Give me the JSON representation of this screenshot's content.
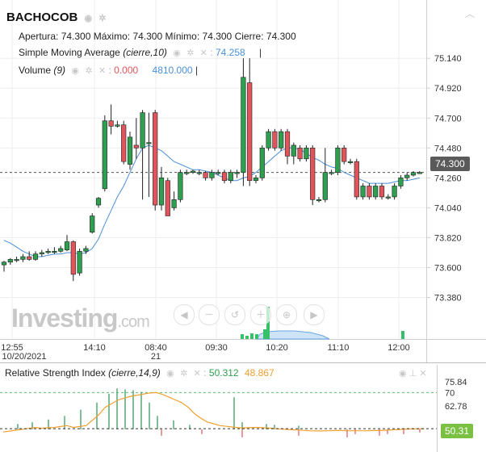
{
  "symbol": "BACHOCOB",
  "header": {
    "open_label": "Apertura:",
    "open_value": "74.300",
    "high_label": "Máximo:",
    "high_value": "74.300",
    "low_label": "Mínimo:",
    "low_value": "74.300",
    "close_label": "Cierre:",
    "close_value": "74.300"
  },
  "indicators": {
    "sma_label": "Simple Moving Average",
    "sma_params": "(cierre,10)",
    "sma_value": "74.258",
    "volume_label": "Volume",
    "volume_params": "(9)",
    "volume_value1": "0.000",
    "volume_value2": "4810.000",
    "rsi_label": "Relative Strength Index",
    "rsi_params": "(cierre,14,9)",
    "rsi_value1": "50.312",
    "rsi_value2": "48.867"
  },
  "watermark": {
    "brand": "Investing",
    "suffix": ".com"
  },
  "current_price_tag": "74.300",
  "rsi_tag": "50.31",
  "colors": {
    "up": "#2e9e4f",
    "down": "#e0555b",
    "sma": "#4a90d9",
    "rsi": "#f0a030",
    "rsi_volume": "#4aa36a",
    "grid": "#eeeeee",
    "price_tag": "#5a5a5a",
    "rsi_tag": "#7ac143"
  },
  "icons": [
    "eye-icon",
    "gear-icon",
    "close-icon",
    "collapse-icon",
    "chevron-up-icon",
    "chevron-left-icon",
    "zoom-out-icon",
    "zoom-reset-icon",
    "zoom-in-icon",
    "chevron-right-icon"
  ],
  "chart_data": [
    {
      "type": "candlestick",
      "title": "BACHOCOB",
      "x_ticks": [
        "12:55",
        "14:10",
        "08:40",
        "09:30",
        "10:20",
        "11:10",
        "12:00"
      ],
      "x_subticks": [
        "10/20/2021",
        "",
        "21",
        "",
        "",
        "",
        ""
      ],
      "y_ticks": [
        75.14,
        74.92,
        74.7,
        74.48,
        74.26,
        74.04,
        73.82,
        73.6,
        73.38
      ],
      "ylim": [
        73.3,
        75.26
      ],
      "grid": true,
      "candles": [
        {
          "o": 73.62,
          "h": 73.65,
          "l": 73.57,
          "c": 73.64
        },
        {
          "o": 73.64,
          "h": 73.67,
          "l": 73.62,
          "c": 73.66
        },
        {
          "o": 73.66,
          "h": 73.68,
          "l": 73.64,
          "c": 73.66
        },
        {
          "o": 73.66,
          "h": 73.7,
          "l": 73.64,
          "c": 73.68
        },
        {
          "o": 73.68,
          "h": 73.72,
          "l": 73.65,
          "c": 73.66
        },
        {
          "o": 73.66,
          "h": 73.72,
          "l": 73.65,
          "c": 73.7
        },
        {
          "o": 73.7,
          "h": 73.73,
          "l": 73.68,
          "c": 73.71
        },
        {
          "o": 73.71,
          "h": 73.74,
          "l": 73.7,
          "c": 73.72
        },
        {
          "o": 73.72,
          "h": 73.75,
          "l": 73.7,
          "c": 73.72
        },
        {
          "o": 73.72,
          "h": 73.76,
          "l": 73.71,
          "c": 73.74
        },
        {
          "o": 73.73,
          "h": 73.84,
          "l": 73.72,
          "c": 73.79
        },
        {
          "o": 73.79,
          "h": 73.8,
          "l": 73.5,
          "c": 73.55
        },
        {
          "o": 73.56,
          "h": 73.74,
          "l": 73.54,
          "c": 73.72
        },
        {
          "o": 73.72,
          "h": 73.76,
          "l": 73.7,
          "c": 73.74
        },
        {
          "o": 73.86,
          "h": 74.0,
          "l": 73.85,
          "c": 73.98
        },
        {
          "o": 74.06,
          "h": 74.12,
          "l": 74.04,
          "c": 74.11
        },
        {
          "o": 74.18,
          "h": 74.72,
          "l": 74.16,
          "c": 74.68
        },
        {
          "o": 74.68,
          "h": 74.8,
          "l": 74.58,
          "c": 74.64
        },
        {
          "o": 74.64,
          "h": 74.68,
          "l": 74.63,
          "c": 74.65
        },
        {
          "o": 74.65,
          "h": 74.68,
          "l": 74.36,
          "c": 74.38
        },
        {
          "o": 74.36,
          "h": 74.6,
          "l": 74.32,
          "c": 74.56
        },
        {
          "o": 74.5,
          "h": 74.7,
          "l": 74.4,
          "c": 74.48
        },
        {
          "o": 74.48,
          "h": 74.76,
          "l": 74.1,
          "c": 74.74
        },
        {
          "o": 74.52,
          "h": 74.74,
          "l": 74.12,
          "c": 74.52
        },
        {
          "o": 74.74,
          "h": 74.76,
          "l": 74.02,
          "c": 74.06
        },
        {
          "o": 74.06,
          "h": 74.34,
          "l": 74.02,
          "c": 74.26
        },
        {
          "o": 74.24,
          "h": 74.26,
          "l": 73.98,
          "c": 73.98
        },
        {
          "o": 74.04,
          "h": 74.16,
          "l": 74.02,
          "c": 74.1
        },
        {
          "o": 74.1,
          "h": 74.32,
          "l": 74.08,
          "c": 74.3
        },
        {
          "o": 74.3,
          "h": 74.32,
          "l": 74.28,
          "c": 74.3
        },
        {
          "o": 74.3,
          "h": 74.32,
          "l": 74.29,
          "c": 74.31
        },
        {
          "o": 74.3,
          "h": 74.32,
          "l": 74.28,
          "c": 74.3
        },
        {
          "o": 74.3,
          "h": 74.31,
          "l": 74.24,
          "c": 74.26
        },
        {
          "o": 74.26,
          "h": 74.32,
          "l": 74.24,
          "c": 74.3
        },
        {
          "o": 74.3,
          "h": 74.32,
          "l": 74.28,
          "c": 74.3
        },
        {
          "o": 74.3,
          "h": 74.32,
          "l": 74.22,
          "c": 74.24
        },
        {
          "o": 74.24,
          "h": 74.32,
          "l": 74.22,
          "c": 74.3
        },
        {
          "o": 74.3,
          "h": 74.32,
          "l": 74.26,
          "c": 74.3
        },
        {
          "o": 74.3,
          "h": 75.14,
          "l": 74.2,
          "c": 75.0
        },
        {
          "o": 74.96,
          "h": 75.14,
          "l": 74.2,
          "c": 74.24
        },
        {
          "o": 74.24,
          "h": 74.28,
          "l": 74.22,
          "c": 74.26
        },
        {
          "o": 74.26,
          "h": 74.5,
          "l": 74.24,
          "c": 74.48
        },
        {
          "o": 74.48,
          "h": 74.62,
          "l": 74.46,
          "c": 74.6
        },
        {
          "o": 74.6,
          "h": 74.62,
          "l": 74.46,
          "c": 74.48
        },
        {
          "o": 74.48,
          "h": 74.62,
          "l": 74.46,
          "c": 74.6
        },
        {
          "o": 74.6,
          "h": 74.62,
          "l": 74.36,
          "c": 74.42
        },
        {
          "o": 74.42,
          "h": 74.52,
          "l": 74.36,
          "c": 74.5
        },
        {
          "o": 74.48,
          "h": 74.5,
          "l": 74.38,
          "c": 74.4
        },
        {
          "o": 74.4,
          "h": 74.5,
          "l": 74.38,
          "c": 74.48
        },
        {
          "o": 74.48,
          "h": 74.5,
          "l": 74.06,
          "c": 74.1
        },
        {
          "o": 74.1,
          "h": 74.12,
          "l": 74.08,
          "c": 74.1
        },
        {
          "o": 74.1,
          "h": 74.48,
          "l": 74.08,
          "c": 74.3
        },
        {
          "o": 74.3,
          "h": 74.32,
          "l": 74.28,
          "c": 74.3
        },
        {
          "o": 74.3,
          "h": 74.5,
          "l": 74.28,
          "c": 74.48
        },
        {
          "o": 74.48,
          "h": 74.5,
          "l": 74.36,
          "c": 74.38
        },
        {
          "o": 74.38,
          "h": 74.4,
          "l": 74.36,
          "c": 74.38
        },
        {
          "o": 74.38,
          "h": 74.4,
          "l": 74.1,
          "c": 74.12
        },
        {
          "o": 74.12,
          "h": 74.22,
          "l": 74.1,
          "c": 74.2
        },
        {
          "o": 74.2,
          "h": 74.22,
          "l": 74.1,
          "c": 74.12
        },
        {
          "o": 74.12,
          "h": 74.22,
          "l": 74.1,
          "c": 74.2
        },
        {
          "o": 74.2,
          "h": 74.22,
          "l": 74.1,
          "c": 74.12
        },
        {
          "o": 74.12,
          "h": 74.14,
          "l": 74.1,
          "c": 74.12
        },
        {
          "o": 74.12,
          "h": 74.22,
          "l": 74.1,
          "c": 74.2
        },
        {
          "o": 74.2,
          "h": 74.28,
          "l": 74.18,
          "c": 74.26
        },
        {
          "o": 74.26,
          "h": 74.3,
          "l": 74.24,
          "c": 74.28
        },
        {
          "o": 74.28,
          "h": 74.31,
          "l": 74.27,
          "c": 74.3
        },
        {
          "o": 74.3,
          "h": 74.31,
          "l": 74.29,
          "c": 74.3
        }
      ],
      "sma": [
        73.8,
        73.78,
        73.75,
        73.72,
        73.7,
        73.68,
        73.68,
        73.69,
        73.7,
        73.7,
        73.71,
        73.71,
        73.7,
        73.71,
        73.74,
        73.81,
        73.92,
        74.02,
        74.12,
        74.2,
        74.3,
        74.4,
        74.48,
        74.5,
        74.48,
        74.46,
        74.42,
        74.38,
        74.36,
        74.34,
        74.32,
        74.32,
        74.31,
        74.3,
        74.28,
        74.26,
        74.24,
        74.24,
        74.26,
        74.27,
        74.3,
        74.34,
        74.38,
        74.42,
        74.46,
        74.48,
        74.48,
        74.47,
        74.44,
        74.41,
        74.39,
        74.36,
        74.34,
        74.33,
        74.3,
        74.28,
        74.26,
        74.24,
        74.22,
        74.22,
        74.22,
        74.22,
        74.23,
        74.24,
        74.24,
        74.25,
        74.26
      ]
    },
    {
      "type": "line",
      "title": "Relative Strength Index",
      "y_ticks": [
        75.84,
        70,
        62.78
      ],
      "ylim": [
        42,
        79
      ],
      "overbought": 70,
      "oversold": 30,
      "rsi": [
        48.5,
        49,
        49.5,
        50,
        50.5,
        51,
        50.6,
        50.8,
        51,
        51.5,
        52,
        51,
        51.5,
        52,
        55,
        58,
        62,
        64,
        66,
        67,
        68,
        68.6,
        69.2,
        69.8,
        70,
        69,
        67.5,
        66,
        64.5,
        62,
        58.5,
        56,
        54,
        53,
        52,
        51.6,
        51.2,
        50.8,
        50.8,
        51,
        51,
        50.8,
        50.6,
        50.3,
        50,
        49.8,
        49.6,
        49.4,
        49.2,
        49.1,
        49.1,
        49.2,
        49.3,
        49.3,
        49.2,
        49.2,
        49.2,
        49.2,
        49.3,
        49.3,
        49.5,
        49.7,
        49.9,
        50.1,
        50.2,
        50.25,
        50.31
      ],
      "signal": [
        48.867
      ]
    }
  ]
}
